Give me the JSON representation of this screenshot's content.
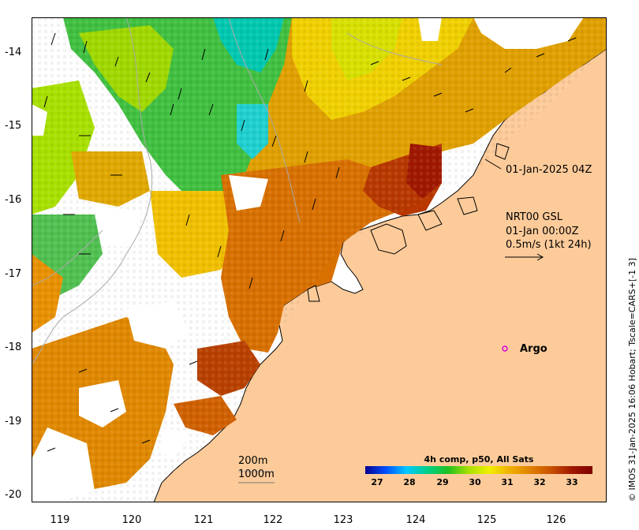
{
  "axes": {
    "x_ticks": [
      "119",
      "120",
      "121",
      "122",
      "123",
      "124",
      "125",
      "126"
    ],
    "y_ticks": [
      "-14",
      "-15",
      "-16",
      "-17",
      "-18",
      "-19",
      "-20"
    ]
  },
  "annotations": {
    "timestamp": "01-Jan-2025 04Z",
    "current_title": "NRT00 GSL",
    "current_time": "01-Jan 00:00Z",
    "current_scale": "0.5m/s (1kt 24h)",
    "argo_label": "Argo",
    "depth_200": "200m",
    "depth_1000": "1000m"
  },
  "colorbar": {
    "title": "4h comp, p50, All Sats",
    "ticks": [
      "27",
      "28",
      "29",
      "30",
      "31",
      "32",
      "33"
    ],
    "colors": [
      "#000090",
      "#0050ff",
      "#00c8ff",
      "#00d08a",
      "#20c020",
      "#a8e000",
      "#f0f000",
      "#f0b000",
      "#e08000",
      "#c85000",
      "#a01800",
      "#800000"
    ]
  },
  "credit": "© IMOS 31-Jan-2025 16:06 Hobart; Tscale=CARS+[-1 3]",
  "colors": {
    "land": "#fdcb9a",
    "argo_marker": "#e000e0"
  }
}
